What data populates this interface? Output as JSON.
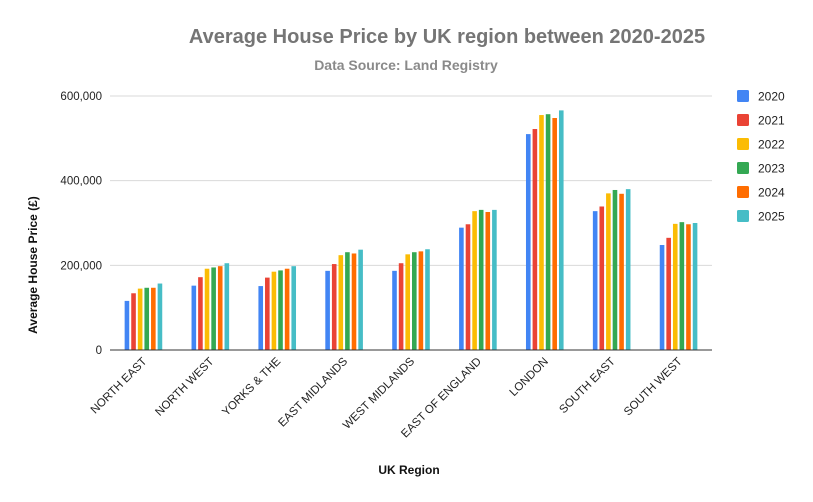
{
  "chart_data": {
    "type": "bar",
    "title": "Average House Price by UK region between 2020-2025",
    "subtitle": "Data Source: Land Registry",
    "xlabel": "UK Region",
    "ylabel": "Average House Price (£)",
    "ylim": [
      0,
      600000
    ],
    "yticks": [
      "0",
      "200,000",
      "400,000",
      "600,000"
    ],
    "grid": true,
    "legend_position": "right",
    "categories": [
      "NORTH EAST",
      "NORTH WEST",
      "YORKS & THE",
      "EAST MIDLANDS",
      "WEST MIDLANDS",
      "EAST OF ENGLAND",
      "LONDON",
      "SOUTH EAST",
      "SOUTH WEST"
    ],
    "series": [
      {
        "name": "2020",
        "color": "#4285F4",
        "values": [
          116000,
          152000,
          151000,
          187000,
          187000,
          289000,
          510000,
          328000,
          248000
        ]
      },
      {
        "name": "2021",
        "color": "#EA4335",
        "values": [
          134000,
          172000,
          171000,
          203000,
          205000,
          297000,
          522000,
          339000,
          265000
        ]
      },
      {
        "name": "2022",
        "color": "#FBBC04",
        "values": [
          145000,
          192000,
          185000,
          224000,
          226000,
          328000,
          555000,
          370000,
          298000
        ]
      },
      {
        "name": "2023",
        "color": "#34A853",
        "values": [
          147000,
          195000,
          188000,
          231000,
          231000,
          331000,
          557000,
          378000,
          302000
        ]
      },
      {
        "name": "2024",
        "color": "#FF6D01",
        "values": [
          147000,
          198000,
          192000,
          228000,
          233000,
          326000,
          548000,
          369000,
          297000
        ]
      },
      {
        "name": "2025",
        "color": "#46BDC6",
        "values": [
          157000,
          205000,
          198000,
          237000,
          238000,
          331000,
          566000,
          380000,
          300000
        ]
      }
    ]
  }
}
